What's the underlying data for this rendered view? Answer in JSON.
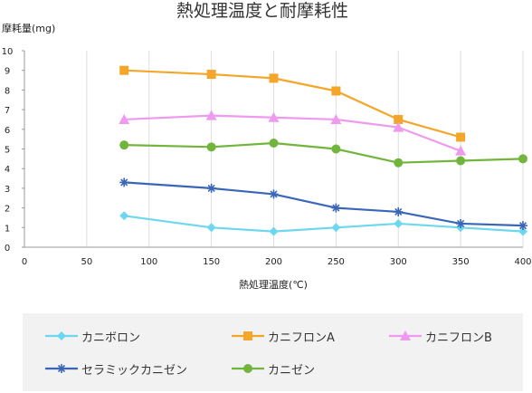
{
  "chart_data": {
    "type": "line",
    "title": "熱処理温度と耐摩耗性",
    "xlabel": "熱処理温度(℃)",
    "ylabel": "摩耗量(mg)",
    "xlim": [
      0,
      400
    ],
    "ylim": [
      0,
      10
    ],
    "xticks": [
      0,
      50,
      100,
      150,
      200,
      250,
      300,
      350,
      400
    ],
    "yticks": [
      0,
      1,
      2,
      3,
      4,
      5,
      6,
      7,
      8,
      9,
      10
    ],
    "grid": "vertical",
    "legend": "bottom",
    "series": [
      {
        "name": "カニボロン",
        "color": "#6dd7ef",
        "marker": "diamond",
        "x": [
          80,
          150,
          200,
          250,
          300,
          350,
          400
        ],
        "y": [
          1.6,
          1.0,
          0.8,
          1.0,
          1.2,
          1.0,
          0.8
        ]
      },
      {
        "name": "カニフロンA",
        "color": "#f4a62a",
        "marker": "square",
        "x": [
          80,
          150,
          200,
          250,
          300,
          350
        ],
        "y": [
          9.0,
          8.8,
          8.6,
          7.95,
          6.5,
          5.6
        ]
      },
      {
        "name": "カニフロンB",
        "color": "#ee9aee",
        "marker": "triangle",
        "x": [
          80,
          150,
          200,
          250,
          300,
          350
        ],
        "y": [
          6.5,
          6.7,
          6.6,
          6.5,
          6.1,
          4.9
        ]
      },
      {
        "name": "セラミックカニゼン",
        "color": "#3a66b8",
        "marker": "star",
        "x": [
          80,
          150,
          200,
          250,
          300,
          350,
          400
        ],
        "y": [
          3.3,
          3.0,
          2.7,
          2.0,
          1.8,
          1.2,
          1.1
        ]
      },
      {
        "name": "カニゼン",
        "color": "#72b53d",
        "marker": "circle",
        "x": [
          80,
          150,
          200,
          250,
          300,
          350,
          400
        ],
        "y": [
          5.2,
          5.1,
          5.3,
          5.0,
          4.3,
          4.4,
          4.5
        ]
      }
    ]
  }
}
